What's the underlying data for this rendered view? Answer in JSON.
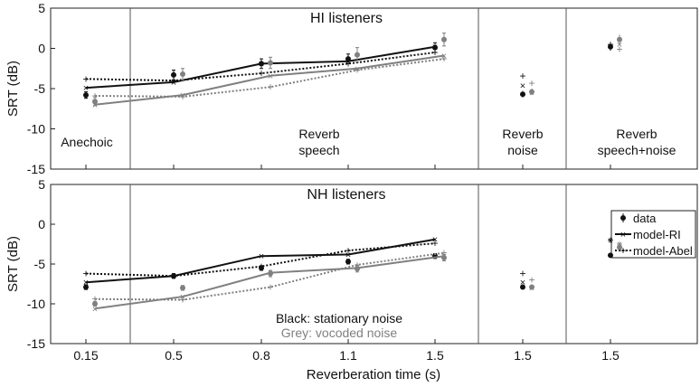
{
  "chart_data": {
    "type": "line",
    "xlabel": "Reverberation time (s)",
    "ylabel": "SRT (dB)",
    "ylim": [
      -15,
      5
    ],
    "yticks": [
      5,
      0,
      -5,
      -10,
      -15
    ],
    "x_tick_labels": [
      "0.15",
      "0.5",
      "0.8",
      "1.1",
      "1.5",
      "1.5",
      "1.5"
    ],
    "legend": {
      "position": "top-right of lower panel",
      "entries": [
        "data",
        "model-RI",
        "model-Abel"
      ]
    },
    "color_note": {
      "black": "Black: stationary noise",
      "grey": "Grey: vocoded noise"
    },
    "colors": {
      "black": "#111111",
      "grey": "#808080",
      "grid": "#555555"
    },
    "panels": [
      {
        "title": "HI listeners",
        "condition_labels": [
          "Anechoic",
          "Reverb speech",
          "Reverb noise",
          "Reverb speech+noise"
        ],
        "series": [
          {
            "name": "data",
            "color": "black",
            "style": "dot",
            "x": [
              0.15,
              0.5,
              0.8,
              1.1,
              1.5
            ],
            "values": [
              -5.8,
              -3.3,
              -1.9,
              -1.3,
              0.1
            ],
            "err": [
              0.4,
              0.6,
              0.6,
              0.6,
              0.6
            ]
          },
          {
            "name": "model-RI",
            "color": "black",
            "style": "solid",
            "x": [
              0.15,
              0.5,
              0.8,
              1.1,
              1.5
            ],
            "values": [
              -4.9,
              -4.2,
              -1.9,
              -1.6,
              0.2
            ]
          },
          {
            "name": "model-Abel",
            "color": "black",
            "style": "dotted",
            "x": [
              0.15,
              0.5,
              0.8,
              1.1,
              1.5
            ],
            "values": [
              -3.8,
              -4.0,
              -3.1,
              -1.9,
              -0.5
            ]
          },
          {
            "name": "data",
            "color": "grey",
            "style": "dot",
            "x": [
              0.15,
              0.5,
              0.8,
              1.1,
              1.5
            ],
            "values": [
              -6.6,
              -3.2,
              -1.8,
              -0.8,
              1.1
            ],
            "err": [
              0.5,
              0.7,
              0.7,
              0.9,
              0.8
            ]
          },
          {
            "name": "model-RI",
            "color": "grey",
            "style": "solid",
            "x": [
              0.15,
              0.5,
              0.8,
              1.1,
              1.5
            ],
            "values": [
              -7.0,
              -5.8,
              -3.4,
              -2.5,
              -0.9
            ]
          },
          {
            "name": "model-Abel",
            "color": "grey",
            "style": "dotted",
            "x": [
              0.15,
              0.5,
              0.8,
              1.1,
              1.5
            ],
            "values": [
              -5.9,
              -6.0,
              -4.8,
              -2.7,
              -1.3
            ]
          }
        ],
        "extra_points": [
          {
            "group": "Reverb noise",
            "color": "black",
            "data": -5.7,
            "err": 0.4,
            "model_ri": -4.6,
            "model_abel": -3.4
          },
          {
            "group": "Reverb noise",
            "color": "grey",
            "data": -5.4,
            "err": 0.4,
            "model_ri": -5.5,
            "model_abel": -4.3
          },
          {
            "group": "Reverb speech+noise",
            "color": "black",
            "data": 0.2,
            "err": 0.5,
            "model_ri": 0.3,
            "model_abel": 0.5
          },
          {
            "group": "Reverb speech+noise",
            "color": "grey",
            "data": 1.1,
            "err": 0.6,
            "model_ri": 0.5,
            "model_abel": -0.1
          }
        ]
      },
      {
        "title": "NH listeners",
        "series": [
          {
            "name": "data",
            "color": "black",
            "style": "dot",
            "x": [
              0.15,
              0.5,
              0.8,
              1.1,
              1.5
            ],
            "values": [
              -7.9,
              -6.5,
              -5.5,
              -4.7,
              -4.0
            ],
            "err": [
              0.3,
              0.3,
              0.3,
              0.3,
              0.3
            ]
          },
          {
            "name": "model-RI",
            "color": "black",
            "style": "solid",
            "x": [
              0.15,
              0.5,
              0.8,
              1.1,
              1.5
            ],
            "values": [
              -7.3,
              -6.5,
              -4.0,
              -3.8,
              -1.9
            ]
          },
          {
            "name": "model-Abel",
            "color": "black",
            "style": "dotted",
            "x": [
              0.15,
              0.5,
              0.8,
              1.1,
              1.5
            ],
            "values": [
              -6.2,
              -6.5,
              -5.3,
              -3.3,
              -2.4
            ]
          },
          {
            "name": "data",
            "color": "grey",
            "style": "dot",
            "x": [
              0.15,
              0.5,
              0.8,
              1.1,
              1.5
            ],
            "values": [
              -10.0,
              -8.0,
              -6.2,
              -5.6,
              -4.2
            ],
            "err": [
              0.3,
              0.3,
              0.4,
              0.4,
              0.4
            ]
          },
          {
            "name": "model-RI",
            "color": "grey",
            "style": "solid",
            "x": [
              0.15,
              0.5,
              0.8,
              1.1,
              1.5
            ],
            "values": [
              -10.6,
              -9.1,
              -6.1,
              -5.5,
              -4.0
            ]
          },
          {
            "name": "model-Abel",
            "color": "grey",
            "style": "dotted",
            "x": [
              0.15,
              0.5,
              0.8,
              1.1,
              1.5
            ],
            "values": [
              -9.4,
              -9.5,
              -7.9,
              -5.1,
              -3.6
            ]
          }
        ],
        "extra_points": [
          {
            "group": "Reverb noise",
            "color": "black",
            "data": -7.9,
            "err": 0.3,
            "model_ri": -7.3,
            "model_abel": -6.2
          },
          {
            "group": "Reverb noise",
            "color": "grey",
            "data": -7.9,
            "err": 0.3,
            "model_ri": -8.0,
            "model_abel": -7.0
          },
          {
            "group": "Reverb speech+noise",
            "color": "black",
            "data": -3.9,
            "err": 0.3,
            "model_ri": -2.0,
            "model_abel": -2.0
          },
          {
            "group": "Reverb speech+noise",
            "color": "grey",
            "data": -2.9,
            "err": 0.3,
            "model_ri": -2.5,
            "model_abel": -2.5
          }
        ]
      }
    ]
  }
}
